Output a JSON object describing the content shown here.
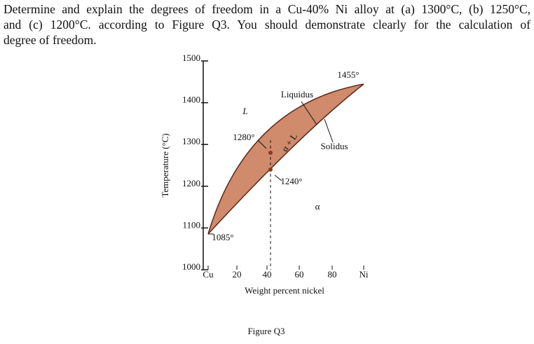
{
  "question": {
    "lines": [
      "Determine and explain the degrees of freedom in a Cu-40% Ni alloy at (a) 1300°C, (b) 1250°C,",
      "and (c) 1200°C. according to Figure Q3. You should demonstrate clearly for the calculation of",
      "degree of freedom."
    ]
  },
  "figure": {
    "y_axis": {
      "label": "Temperature (°C)",
      "ticks": [
        1500,
        1400,
        1300,
        1200,
        1100,
        1000
      ]
    },
    "x_axis": {
      "label": "Weight percent nickel",
      "ticks": [
        "Cu",
        "20",
        "40",
        "60",
        "80",
        "Ni"
      ]
    },
    "annotations": {
      "liquidus": "Liquidus",
      "solidus": "Solidus",
      "liquid": "L",
      "two_phase": "α + L",
      "alpha": "α",
      "t1455": "1455°",
      "t1280": "1280°",
      "t1240": "1240°",
      "t1085": "1085°"
    },
    "caption": "Figure Q3"
  }
}
